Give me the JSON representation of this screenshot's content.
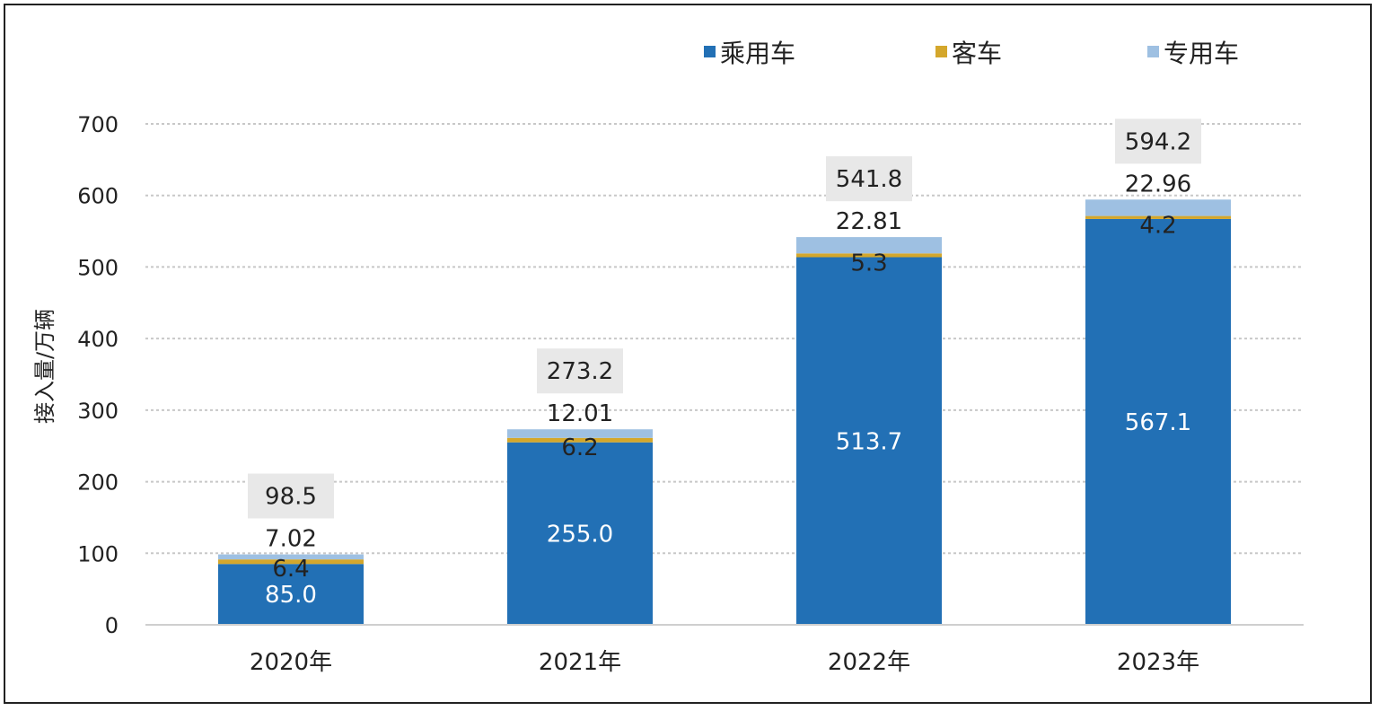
{
  "chart_data": {
    "type": "bar",
    "stacked": true,
    "title": "",
    "xlabel": "",
    "ylabel": "接入量/万辆",
    "ylim": [
      0,
      700
    ],
    "yticks": [
      0,
      100,
      200,
      300,
      400,
      500,
      600,
      700
    ],
    "grid": true,
    "legend_position": "top-right",
    "categories": [
      "2020年",
      "2021年",
      "2022年",
      "2023年"
    ],
    "series": [
      {
        "name": "乘用车",
        "color": "#2270b5",
        "values": [
          85.0,
          255.0,
          513.7,
          567.1
        ],
        "labels": [
          "85.0",
          "255.0",
          "513.7",
          "567.1"
        ]
      },
      {
        "name": "客车",
        "color": "#d4a72c",
        "values": [
          6.4,
          6.2,
          5.3,
          4.2
        ],
        "labels": [
          "6.4",
          "6.2",
          "5.3",
          "4.2"
        ]
      },
      {
        "name": "专用车",
        "color": "#9ec0e2",
        "values": [
          7.02,
          12.01,
          22.81,
          22.96
        ],
        "labels": [
          "7.02",
          "12.01",
          "22.81",
          "22.96"
        ]
      }
    ],
    "totals": [
      98.5,
      273.2,
      541.8,
      594.2
    ],
    "total_labels": [
      "98.5",
      "273.2",
      "541.8",
      "594.2"
    ]
  }
}
